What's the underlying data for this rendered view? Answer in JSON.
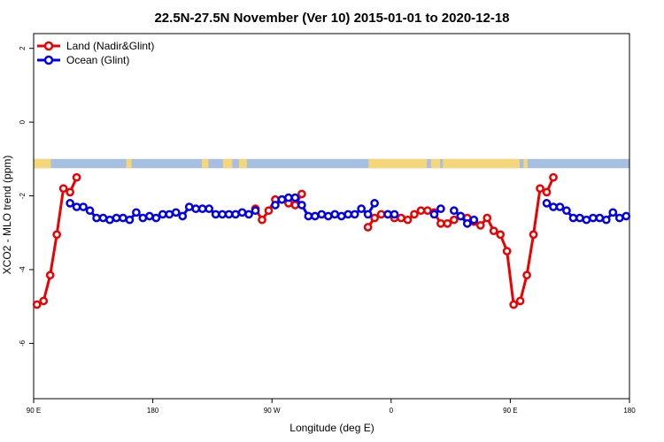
{
  "chart_data": {
    "type": "line",
    "title": "22.5N-27.5N November (Ver 10)   2015-01-01 to 2020-12-18",
    "xlabel": "Longitude (deg E)",
    "ylabel": "XCO2 - MLO trend (ppm)",
    "xlim": [
      90,
      540
    ],
    "ylim": [
      -7.5,
      2.4
    ],
    "x_ticks": [
      {
        "value": 90,
        "label": "90 E"
      },
      {
        "value": 180,
        "label": "180"
      },
      {
        "value": 270,
        "label": "90 W"
      },
      {
        "value": 360,
        "label": "0"
      },
      {
        "value": 450,
        "label": "90 E"
      },
      {
        "value": 540,
        "label": "180"
      }
    ],
    "y_ticks": [
      {
        "value": 2,
        "label": "2"
      },
      {
        "value": 0,
        "label": "0"
      },
      {
        "value": -2,
        "label": "-2"
      },
      {
        "value": -4,
        "label": "-4"
      },
      {
        "value": -6,
        "label": "-6"
      }
    ],
    "grid": false,
    "legend": "top-left",
    "map_strip": {
      "y_top": -1.0,
      "y_bottom": -1.25,
      "ocean_color": "#a7bfe0",
      "land_color": "#f5d67a"
    },
    "series": [
      {
        "name": "Land (Nadir&Glint)",
        "color": "#ee0000",
        "segments": [
          [
            [
              92.5,
              -4.95
            ],
            [
              97.5,
              -4.85
            ],
            [
              102.5,
              -4.15
            ],
            [
              107.5,
              -3.05
            ],
            [
              112.5,
              -1.8
            ],
            [
              117.5,
              -1.9
            ],
            [
              122.5,
              -1.5
            ]
          ],
          [
            [
              257.5,
              -2.35
            ],
            [
              262.5,
              -2.65
            ],
            [
              267.5,
              -2.4
            ],
            [
              272.5,
              -2.1
            ]
          ],
          [
            [
              277.5,
              -2.1
            ],
            [
              282.5,
              -2.2
            ]
          ],
          [
            [
              287.5,
              -2.25
            ],
            [
              292.5,
              -1.95
            ]
          ],
          [
            [
              342.5,
              -2.85
            ],
            [
              347.5,
              -2.6
            ],
            [
              352.5,
              -2.5
            ],
            [
              357.5,
              -2.5
            ],
            [
              362.5,
              -2.6
            ],
            [
              367.5,
              -2.6
            ],
            [
              372.5,
              -2.65
            ],
            [
              377.5,
              -2.5
            ],
            [
              382.5,
              -2.4
            ],
            [
              387.5,
              -2.4
            ],
            [
              392.5,
              -2.45
            ],
            [
              397.5,
              -2.75
            ],
            [
              402.5,
              -2.75
            ],
            [
              407.5,
              -2.65
            ],
            [
              412.5,
              -2.55
            ],
            [
              417.5,
              -2.6
            ],
            [
              422.5,
              -2.7
            ],
            [
              427.5,
              -2.8
            ],
            [
              432.5,
              -2.6
            ],
            [
              437.5,
              -2.95
            ],
            [
              442.5,
              -3.05
            ],
            [
              447.5,
              -3.5
            ],
            [
              452.5,
              -4.95
            ],
            [
              457.5,
              -4.85
            ],
            [
              462.5,
              -4.15
            ],
            [
              467.5,
              -3.05
            ],
            [
              472.5,
              -1.8
            ],
            [
              477.5,
              -1.9
            ],
            [
              482.5,
              -1.5
            ]
          ]
        ]
      },
      {
        "name": "Ocean (Glint)",
        "color": "#0000ee",
        "segments": [
          [
            [
              117.5,
              -2.2
            ],
            [
              122.5,
              -2.3
            ],
            [
              127.5,
              -2.3
            ],
            [
              132.5,
              -2.4
            ],
            [
              137.5,
              -2.6
            ],
            [
              142.5,
              -2.6
            ],
            [
              147.5,
              -2.65
            ],
            [
              152.5,
              -2.6
            ],
            [
              157.5,
              -2.6
            ],
            [
              162.5,
              -2.65
            ],
            [
              167.5,
              -2.45
            ],
            [
              172.5,
              -2.6
            ],
            [
              177.5,
              -2.55
            ],
            [
              182.5,
              -2.6
            ],
            [
              187.5,
              -2.5
            ],
            [
              192.5,
              -2.5
            ],
            [
              197.5,
              -2.45
            ],
            [
              202.5,
              -2.55
            ],
            [
              207.5,
              -2.3
            ],
            [
              212.5,
              -2.35
            ],
            [
              217.5,
              -2.35
            ],
            [
              222.5,
              -2.35
            ],
            [
              227.5,
              -2.5
            ],
            [
              232.5,
              -2.5
            ],
            [
              237.5,
              -2.5
            ],
            [
              242.5,
              -2.5
            ],
            [
              247.5,
              -2.45
            ],
            [
              252.5,
              -2.5
            ],
            [
              257.5,
              -2.4
            ]
          ],
          [
            [
              272.5,
              -2.25
            ],
            [
              277.5,
              -2.1
            ],
            [
              282.5,
              -2.05
            ],
            [
              287.5,
              -2.05
            ],
            [
              292.5,
              -2.25
            ],
            [
              297.5,
              -2.55
            ],
            [
              302.5,
              -2.55
            ],
            [
              307.5,
              -2.5
            ],
            [
              312.5,
              -2.55
            ],
            [
              317.5,
              -2.5
            ],
            [
              322.5,
              -2.55
            ],
            [
              327.5,
              -2.5
            ],
            [
              332.5,
              -2.5
            ],
            [
              337.5,
              -2.35
            ],
            [
              342.5,
              -2.5
            ],
            [
              347.5,
              -2.2
            ]
          ],
          [
            [
              357.5,
              -2.5
            ],
            [
              362.5,
              -2.5
            ]
          ],
          [
            [
              392.5,
              -2.5
            ],
            [
              397.5,
              -2.35
            ]
          ],
          [
            [
              407.5,
              -2.4
            ],
            [
              412.5,
              -2.55
            ],
            [
              417.5,
              -2.75
            ],
            [
              422.5,
              -2.65
            ]
          ],
          [
            [
              477.5,
              -2.2
            ],
            [
              482.5,
              -2.3
            ],
            [
              487.5,
              -2.3
            ],
            [
              492.5,
              -2.4
            ],
            [
              497.5,
              -2.6
            ],
            [
              502.5,
              -2.6
            ],
            [
              507.5,
              -2.65
            ],
            [
              512.5,
              -2.6
            ],
            [
              517.5,
              -2.6
            ],
            [
              522.5,
              -2.65
            ],
            [
              527.5,
              -2.45
            ],
            [
              532.5,
              -2.6
            ],
            [
              537.5,
              -2.55
            ]
          ]
        ]
      }
    ]
  }
}
